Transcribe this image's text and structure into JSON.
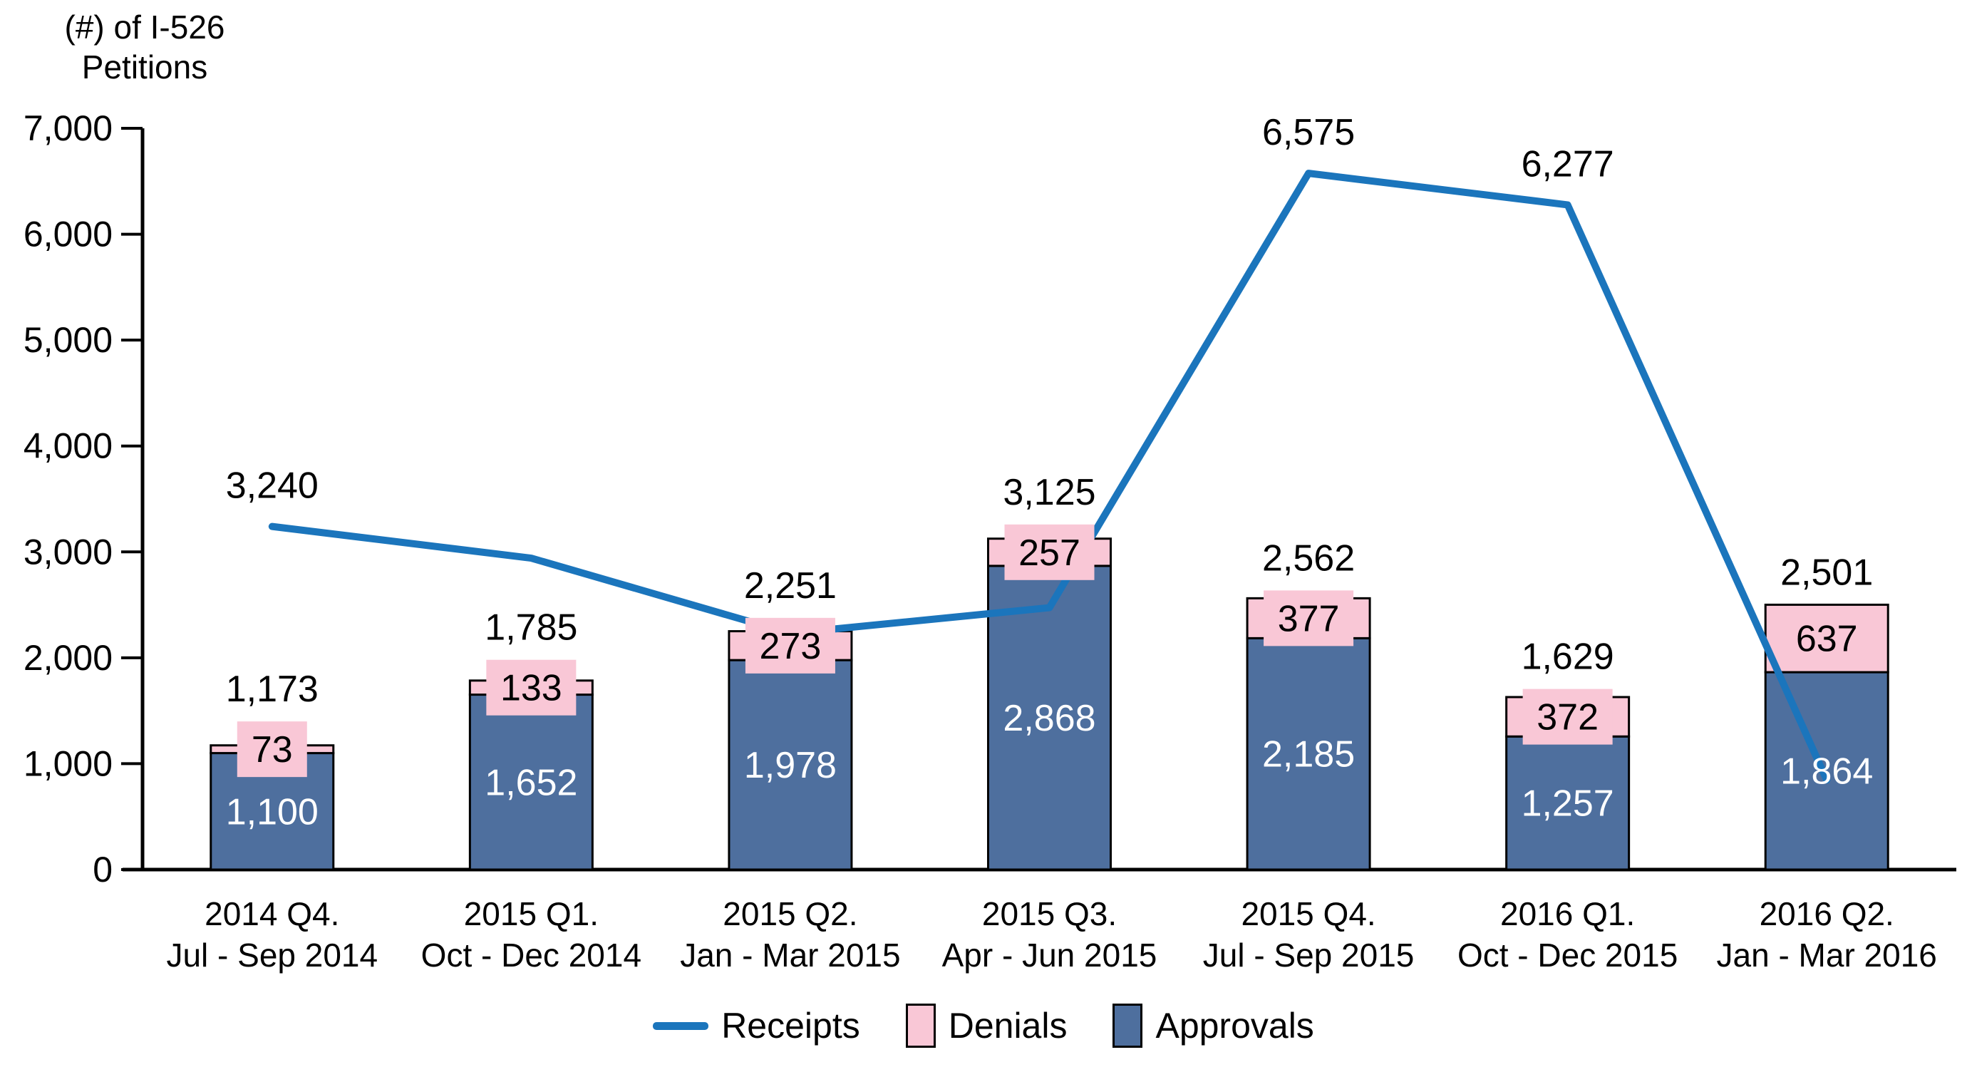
{
  "axis_title": {
    "line1": "(#) of I-526",
    "line2": "Petitions"
  },
  "colors": {
    "receipts_line": "#1B75BC",
    "denials_fill": "#F9C7D6",
    "approvals_fill": "#4E6F9E",
    "bar_border": "#000000",
    "axis": "#000000",
    "approvals_label_text": "#ffffff",
    "label_text": "#000000"
  },
  "legend": {
    "items": [
      {
        "label": "Receipts",
        "swatch": "line",
        "color": "#1B75BC"
      },
      {
        "label": "Denials",
        "swatch": "box",
        "color": "#F9C7D6"
      },
      {
        "label": "Approvals",
        "swatch": "box",
        "color": "#4E6F9E"
      }
    ]
  },
  "y_axis": {
    "tick_labels": [
      "0",
      "1,000",
      "2,000",
      "3,000",
      "4,000",
      "5,000",
      "6,000",
      "7,000"
    ]
  },
  "chart_data": {
    "type": "combo-stacked-bar-line",
    "title": "(#) of I-526 Petitions",
    "xlabel": "",
    "ylabel": "(#) of I-526 Petitions",
    "ylim": [
      0,
      7000
    ],
    "ytick_step": 1000,
    "grid": false,
    "legend_position": "bottom",
    "categories": [
      {
        "line1": "2014 Q4.",
        "line2": "Jul - Sep 2014"
      },
      {
        "line1": "2015 Q1.",
        "line2": "Oct - Dec 2014"
      },
      {
        "line1": "2015 Q2.",
        "line2": "Jan - Mar 2015"
      },
      {
        "line1": "2015 Q3.",
        "line2": "Apr - Jun 2015"
      },
      {
        "line1": "2015 Q4.",
        "line2": "Jul - Sep 2015"
      },
      {
        "line1": "2016 Q1.",
        "line2": "Oct - Dec 2015"
      },
      {
        "line1": "2016 Q2.",
        "line2": "Jan - Mar 2016"
      }
    ],
    "series": [
      {
        "name": "Approvals",
        "type": "bar",
        "stacked": true,
        "color": "#4E6F9E",
        "values": [
          1100,
          1652,
          1978,
          2868,
          2185,
          1257,
          1864
        ],
        "labels": [
          "1,100",
          "1,652",
          "1,978",
          "2,868",
          "2,185",
          "1,257",
          "1,864"
        ]
      },
      {
        "name": "Denials",
        "type": "bar",
        "stacked": true,
        "color": "#F9C7D6",
        "values": [
          73,
          133,
          273,
          257,
          377,
          372,
          637
        ],
        "labels": [
          "73",
          "133",
          "273",
          "257",
          "377",
          "372",
          "637"
        ]
      },
      {
        "name": "Receipts",
        "type": "line",
        "color": "#1B75BC",
        "values": [
          3240,
          2941,
          2231,
          2473,
          6575,
          6277,
          846
        ],
        "labels": [
          "3,240",
          null,
          null,
          null,
          "6,575",
          "6,277",
          null
        ]
      }
    ],
    "stack_totals": [
      1173,
      1785,
      2251,
      3125,
      2562,
      1629,
      2501
    ],
    "stack_total_labels": [
      "1,173",
      "1,785",
      "2,251",
      "3,125",
      "2,562",
      "1,629",
      "2,501"
    ]
  }
}
